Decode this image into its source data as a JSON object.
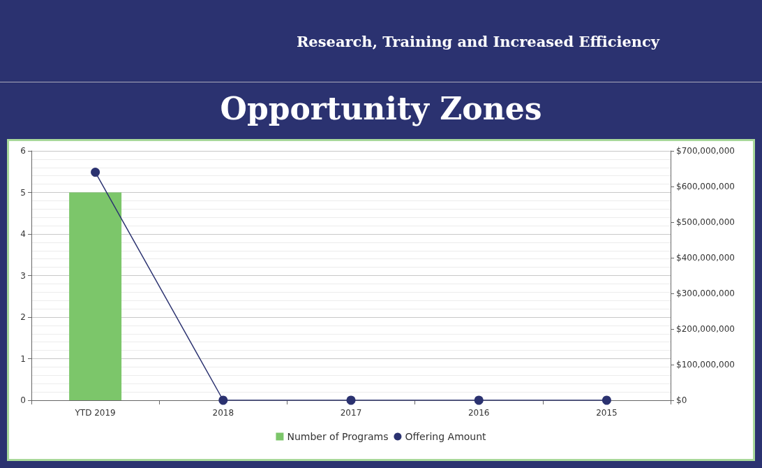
{
  "chart_data": {
    "type": "bar",
    "title": "Opportunity Zones",
    "subtitle": "Research, Training and Increased Efficiency",
    "categories": [
      "YTD 2019",
      "2018",
      "2017",
      "2016",
      "2015"
    ],
    "series": [
      {
        "name": "Number of Programs",
        "color": "#7cc66a",
        "values": [
          5,
          0,
          0,
          0,
          0
        ]
      },
      {
        "name": "Offering Amount",
        "type": "line",
        "axis": "y2",
        "color": "#2b3270",
        "values": [
          640000000,
          0,
          0,
          0,
          0
        ]
      }
    ],
    "ylim": [
      0,
      6
    ],
    "yticks": [
      0,
      1,
      2,
      3,
      4,
      5,
      6
    ],
    "y2lim": [
      0,
      700000000
    ],
    "y2ticks": [
      {
        "value": 0,
        "label": "$0"
      },
      {
        "value": 100000000,
        "label": "$100,000,000"
      },
      {
        "value": 200000000,
        "label": "$200,000,000"
      },
      {
        "value": 300000000,
        "label": "$300,000,000"
      },
      {
        "value": 400000000,
        "label": "$400,000,000"
      },
      {
        "value": 500000000,
        "label": "$500,000,000"
      },
      {
        "value": 600000000,
        "label": "$600,000,000"
      },
      {
        "value": 700000000,
        "label": "$700,000,000"
      }
    ],
    "grid": "y",
    "legend": "bottom",
    "marker": "circle",
    "line_style": "solid"
  }
}
